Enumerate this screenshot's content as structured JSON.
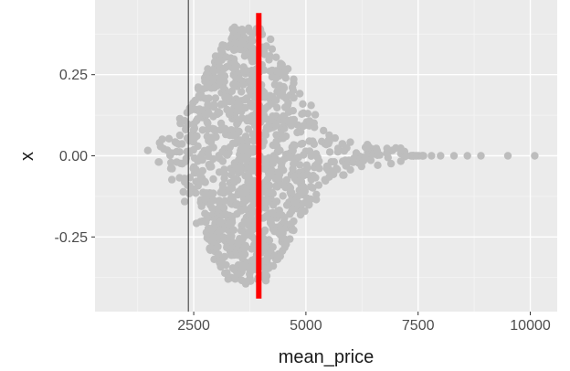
{
  "chart_data": {
    "type": "scatter",
    "subtype": "beeswarm",
    "title": "",
    "xlabel": "mean_price",
    "ylabel": "x",
    "xlim": [
      300,
      10600
    ],
    "ylim": [
      -0.48,
      0.48
    ],
    "x_ticks": [
      2500,
      5000,
      7500,
      10000
    ],
    "x_tick_labels": [
      "2500",
      "5000",
      "7500",
      "10000"
    ],
    "y_ticks": [
      0.25,
      0.0,
      -0.25
    ],
    "y_tick_labels": [
      "0.25",
      "0.00",
      "-0.25"
    ],
    "grid": true,
    "background": "#ebebeb",
    "point_color": "#bdbdbd",
    "point_count": 1200,
    "x_distribution": {
      "min": 900,
      "median": 3700,
      "max": 10100,
      "sparse_tail_x": [
        7200,
        7400,
        7600,
        7800,
        8000,
        8300,
        8600,
        8900,
        9500,
        10100
      ]
    },
    "reference_lines": [
      {
        "name": "thin-vertical-line",
        "x": 2380,
        "color": "#333333"
      },
      {
        "name": "mean-line",
        "x": 3950,
        "y_range": [
          -0.44,
          0.44
        ],
        "color": "#ff0000"
      }
    ]
  }
}
